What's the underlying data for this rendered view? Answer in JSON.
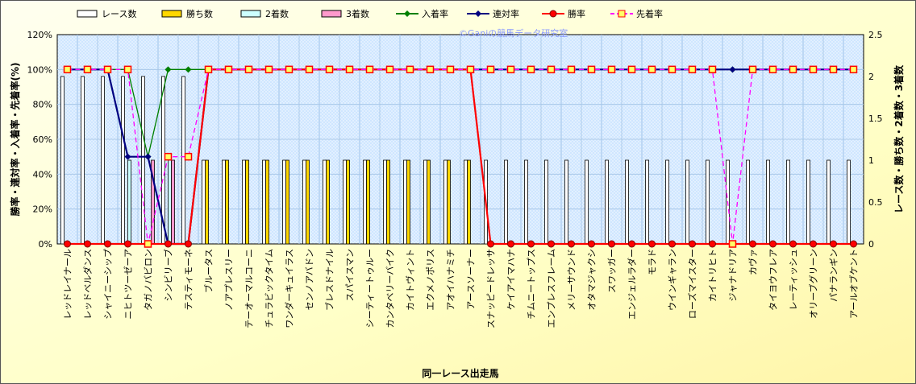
{
  "chart_data": {
    "type": "bar",
    "watermark": "©Ganiの競馬データ研究室",
    "xlabel": "同一レース出走馬",
    "ylabel_left": "勝率・連対率・入着率・先着率(%)",
    "ylabel_right": "レース数・勝ち数・2着数・3着数",
    "ylim_left": [
      0,
      120
    ],
    "ylim_right": [
      0,
      2.5
    ],
    "yticks_left": [
      "0%",
      "20%",
      "40%",
      "60%",
      "80%",
      "100%",
      "120%"
    ],
    "yticks_right": [
      "0",
      "0.5",
      "1",
      "1.5",
      "2",
      "2.5"
    ],
    "grid": true,
    "legend_position": "top",
    "categories": [
      "レッドレイナール",
      "レッドベルダンス",
      "シャイニーシップ",
      "ニヒトツーゼーア",
      "タガノバビロン",
      "シンビリーブ",
      "テスティモーネ",
      "ブルータス",
      "ノアプレスリー",
      "テーオーマルコーニ",
      "チュラビックタイム",
      "ワンダーキュイラス",
      "センノアバドン",
      "ブレスドナイル",
      "スパイスマン",
      "シーティートゥルー",
      "カンタベリーバイク",
      "カイトヴィント",
      "エクメノポリス",
      "アオイハナミチ",
      "アースソーナー",
      "スナッピードレッサ",
      "ケイアイマハナ",
      "チムニートップス",
      "エンプレスフレーム",
      "メリーサウンド",
      "オタマジャクシ",
      "スワッガー",
      "エンジェルラダー",
      "モラド",
      "ウインギャラン",
      "ローズマイスター",
      "カイトリヒト",
      "ジャナドリア",
      "カヴァ",
      "タイヨウフレア",
      "レーティッシュ",
      "オリーブグリーン",
      "パナランギン",
      "アールオブケント"
    ],
    "series": [
      {
        "name": "レース数",
        "axis": "right",
        "kind": "bar",
        "color": "#ffffff",
        "values": [
          2,
          2,
          2,
          2,
          2,
          2,
          2,
          1,
          1,
          1,
          1,
          1,
          1,
          1,
          1,
          1,
          1,
          1,
          1,
          1,
          1,
          1,
          1,
          1,
          1,
          1,
          1,
          1,
          1,
          1,
          1,
          1,
          1,
          1,
          1,
          1,
          1,
          1,
          1,
          1
        ]
      },
      {
        "name": "勝ち数",
        "axis": "right",
        "kind": "bar",
        "color": "#ffd700",
        "values": [
          0,
          0,
          0,
          0,
          0,
          0,
          0,
          1,
          1,
          1,
          1,
          1,
          1,
          1,
          1,
          1,
          1,
          1,
          1,
          1,
          1,
          0,
          0,
          0,
          0,
          0,
          0,
          0,
          0,
          0,
          0,
          0,
          0,
          0,
          0,
          0,
          0,
          0,
          0,
          0
        ]
      },
      {
        "name": "2着数",
        "axis": "right",
        "kind": "bar",
        "color": "#ccffff",
        "values": [
          0,
          0,
          0,
          1,
          0,
          1,
          0,
          0,
          0,
          0,
          0,
          0,
          0,
          0,
          0,
          0,
          0,
          0,
          0,
          0,
          0,
          0,
          0,
          0,
          0,
          0,
          0,
          0,
          0,
          0,
          0,
          0,
          0,
          0,
          0,
          0,
          0,
          0,
          0,
          0
        ]
      },
      {
        "name": "3着数",
        "axis": "right",
        "kind": "bar",
        "color": "#ff99cc",
        "values": [
          0,
          0,
          0,
          0,
          1,
          1,
          0,
          0,
          0,
          0,
          0,
          0,
          0,
          0,
          0,
          0,
          0,
          0,
          0,
          0,
          0,
          0,
          0,
          0,
          0,
          0,
          0,
          0,
          0,
          0,
          0,
          0,
          0,
          0,
          0,
          0,
          0,
          0,
          0,
          0
        ]
      },
      {
        "name": "入着率",
        "axis": "left",
        "kind": "line",
        "color": "#008000",
        "marker": "diamond",
        "values": [
          100,
          100,
          100,
          100,
          50,
          100,
          100,
          100,
          100,
          100,
          100,
          100,
          100,
          100,
          100,
          100,
          100,
          100,
          100,
          100,
          100,
          100,
          100,
          100,
          100,
          100,
          100,
          100,
          100,
          100,
          100,
          100,
          100,
          100,
          100,
          100,
          100,
          100,
          100,
          100
        ]
      },
      {
        "name": "連対率",
        "axis": "left",
        "kind": "line",
        "color": "#000080",
        "marker": "diamond",
        "values": [
          100,
          100,
          100,
          50,
          50,
          0,
          0,
          100,
          100,
          100,
          100,
          100,
          100,
          100,
          100,
          100,
          100,
          100,
          100,
          100,
          100,
          100,
          100,
          100,
          100,
          100,
          100,
          100,
          100,
          100,
          100,
          100,
          100,
          100,
          100,
          100,
          100,
          100,
          100,
          100
        ]
      },
      {
        "name": "勝率",
        "axis": "left",
        "kind": "line",
        "color": "#ff0000",
        "marker": "circle",
        "values": [
          0,
          0,
          0,
          0,
          0,
          0,
          0,
          100,
          100,
          100,
          100,
          100,
          100,
          100,
          100,
          100,
          100,
          100,
          100,
          100,
          100,
          0,
          0,
          0,
          0,
          0,
          0,
          0,
          0,
          0,
          0,
          0,
          0,
          0,
          0,
          0,
          0,
          0,
          0,
          0
        ]
      },
      {
        "name": "先着率",
        "axis": "left",
        "kind": "line",
        "color": "#ff00ff",
        "marker": "square",
        "dashed": true,
        "values": [
          100,
          100,
          100,
          100,
          0,
          50,
          50,
          100,
          100,
          100,
          100,
          100,
          100,
          100,
          100,
          100,
          100,
          100,
          100,
          100,
          100,
          100,
          100,
          100,
          100,
          100,
          100,
          100,
          100,
          100,
          100,
          100,
          100,
          0,
          100,
          100,
          100,
          100,
          100,
          100
        ]
      }
    ]
  }
}
